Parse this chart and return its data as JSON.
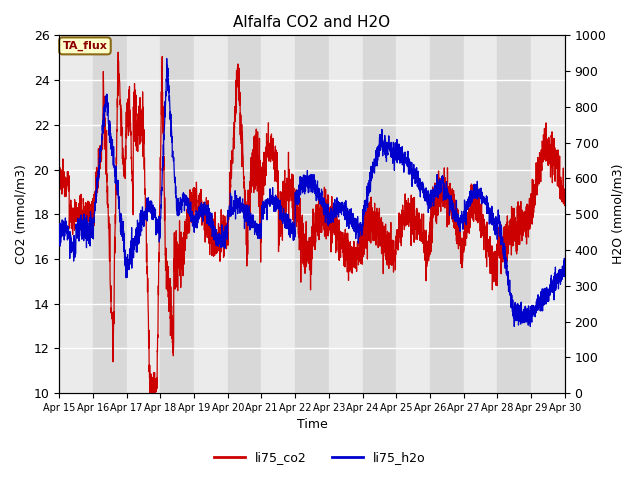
{
  "title": "Alfalfa CO2 and H2O",
  "ylabel_left": "CO2 (mmol/m3)",
  "ylabel_right": "H2O (mmol/m3)",
  "xlabel": "Time",
  "ylim_left": [
    10,
    26
  ],
  "ylim_right": [
    0,
    1000
  ],
  "annotation_text": "TA_flux",
  "annotation_color": "#8b0000",
  "annotation_bg": "#ffffcc",
  "annotation_border": "#8b6914",
  "legend_labels": [
    "li75_co2",
    "li75_h2o"
  ],
  "co2_color": "#cc0000",
  "h2o_color": "#0000cc",
  "band_light": "#ebebeb",
  "band_dark": "#d8d8d8",
  "x_start": 15,
  "x_end": 30,
  "x_ticks": [
    15,
    16,
    17,
    18,
    19,
    20,
    21,
    22,
    23,
    24,
    25,
    26,
    27,
    28,
    29,
    30
  ],
  "x_tick_labels": [
    "Apr 15",
    "Apr 16",
    "Apr 17",
    "Apr 18",
    "Apr 19",
    "Apr 20",
    "Apr 21",
    "Apr 22",
    "Apr 23",
    "Apr 24",
    "Apr 25",
    "Apr 26",
    "Apr 27",
    "Apr 28",
    "Apr 29",
    "Apr 30"
  ],
  "yticks_left": [
    10,
    12,
    14,
    16,
    18,
    20,
    22,
    24,
    26
  ],
  "yticks_right": [
    0,
    100,
    200,
    300,
    400,
    500,
    600,
    700,
    800,
    900,
    1000
  ]
}
